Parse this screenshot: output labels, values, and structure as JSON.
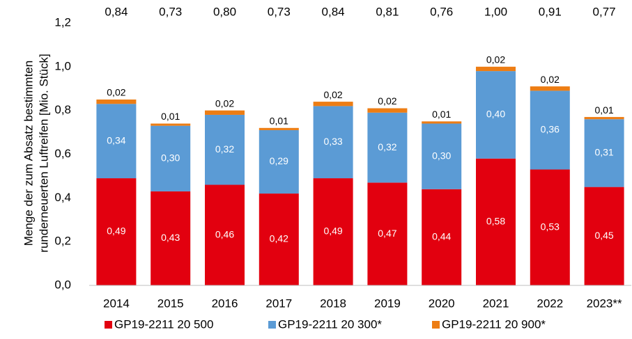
{
  "chart_data": {
    "type": "stacked_bar",
    "y_axis_label": [
      "Menge der zum Absatz bestimmten",
      "runderneuerten Luftreifen [Mio. Stück]"
    ],
    "categories": [
      "2014",
      "2015",
      "2016",
      "2017",
      "2018",
      "2019",
      "2020",
      "2021",
      "2022",
      "2023**"
    ],
    "series": [
      {
        "name": "GP19-2211 20 500",
        "color": "#e2000f",
        "label_color": "#ffffff",
        "values": [
          0.49,
          0.43,
          0.46,
          0.42,
          0.49,
          0.47,
          0.44,
          0.58,
          0.53,
          0.45
        ],
        "value_labels": [
          "0,49",
          "0,43",
          "0,46",
          "0,42",
          "0,49",
          "0,47",
          "0,44",
          "0,58",
          "0,53",
          "0,45"
        ]
      },
      {
        "name": "GP19-2211 20 300*",
        "color": "#5b9bd5",
        "label_color": "#ffffff",
        "values": [
          0.34,
          0.3,
          0.32,
          0.29,
          0.33,
          0.32,
          0.3,
          0.4,
          0.36,
          0.31
        ],
        "value_labels": [
          "0,34",
          "0,30",
          "0,32",
          "0,29",
          "0,33",
          "0,32",
          "0,30",
          "0,40",
          "0,36",
          "0,31"
        ]
      },
      {
        "name": "GP19-2211 20 900*",
        "color": "#ed7d14",
        "label_color": "#000000",
        "label_position": "above",
        "values": [
          0.02,
          0.01,
          0.02,
          0.01,
          0.02,
          0.02,
          0.01,
          0.02,
          0.02,
          0.01
        ],
        "value_labels": [
          "0,02",
          "0,01",
          "0,02",
          "0,01",
          "0,02",
          "0,02",
          "0,01",
          "0,02",
          "0,02",
          "0,01"
        ]
      }
    ],
    "totals": [
      0.84,
      0.73,
      0.8,
      0.73,
      0.84,
      0.81,
      0.76,
      1.0,
      0.91,
      0.77
    ],
    "total_labels": [
      "0,84",
      "0,73",
      "0,80",
      "0,73",
      "0,84",
      "0,81",
      "0,76",
      "1,00",
      "0,91",
      "0,77"
    ],
    "ylim": [
      0,
      1.2
    ],
    "yticks": [
      {
        "value": 0,
        "label": "0,0"
      },
      {
        "value": 0.2,
        "label": "0,2"
      },
      {
        "value": 0.4,
        "label": "0,4"
      },
      {
        "value": 0.6,
        "label": "0,6"
      },
      {
        "value": 0.8,
        "label": "0,8"
      },
      {
        "value": 1.0,
        "label": "1,0"
      },
      {
        "value": 1.2,
        "label": "1,2"
      }
    ],
    "grid": false,
    "legend": "bottom"
  }
}
